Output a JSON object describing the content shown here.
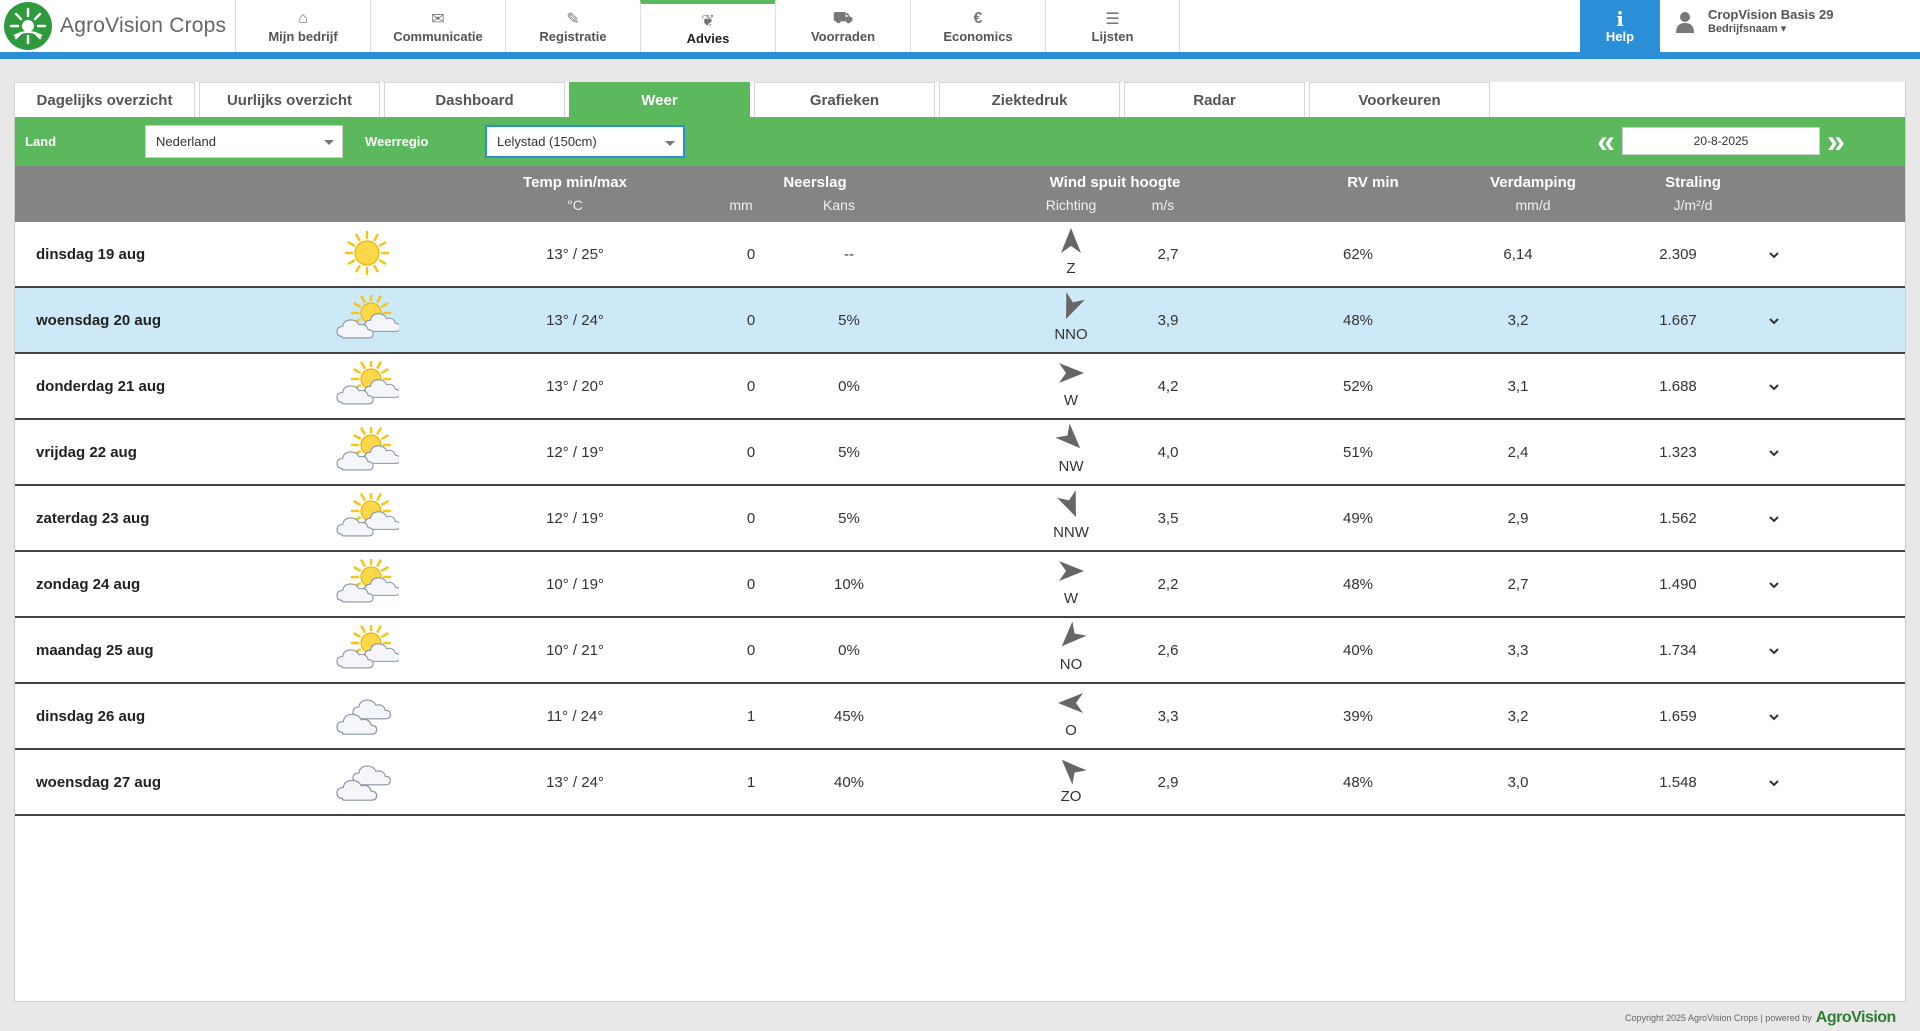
{
  "app": {
    "name": "AgroVision Crops"
  },
  "nav": [
    {
      "label": "Mijn bedrijf",
      "icon": "home-icon",
      "glyph": "⌂"
    },
    {
      "label": "Communicatie",
      "icon": "envelope-icon",
      "glyph": "✉"
    },
    {
      "label": "Registratie",
      "icon": "pencil-icon",
      "glyph": "✎"
    },
    {
      "label": "Advies",
      "icon": "leaf-icon",
      "glyph": "❦"
    },
    {
      "label": "Voorraden",
      "icon": "truck-icon",
      "glyph": "⛟"
    },
    {
      "label": "Economics",
      "icon": "euro-icon",
      "glyph": "€"
    },
    {
      "label": "Lijsten",
      "icon": "list-icon",
      "glyph": "☰"
    }
  ],
  "nav_active": "Advies",
  "help": {
    "label": "Help",
    "glyph": "i"
  },
  "user": {
    "line1": "CropVision Basis 29",
    "line2": "Bedrijfsnaam ▾"
  },
  "tabs": [
    "Dagelijks overzicht",
    "Uurlijks overzicht",
    "Dashboard",
    "Weer",
    "Grafieken",
    "Ziektedruk",
    "Radar",
    "Voorkeuren"
  ],
  "tab_active": "Weer",
  "filters": {
    "land_label": "Land",
    "land_value": "Nederland",
    "region_label": "Weerregio",
    "region_value": "Lelystad (150cm)",
    "date": "20-8-2025",
    "prev": "«",
    "next": "»"
  },
  "header": {
    "temp": "Temp min/max",
    "temp_unit": "°C",
    "neerslag": "Neerslag",
    "mm": "mm",
    "kans": "Kans",
    "wind": "Wind spuit hoogte",
    "richting": "Richting",
    "ms": "m/s",
    "rv": "RV min",
    "verdamping": "Verdamping",
    "verdamping_unit": "mm/d",
    "straling": "Straling",
    "straling_unit": "J/m²/d"
  },
  "rows": [
    {
      "day": "dinsdag 19 aug",
      "weather": "sunny",
      "temp": "13° / 25°",
      "mm": "0",
      "kans": "--",
      "dir": "Z",
      "wind": "2,7",
      "rv": "62%",
      "verd": "6,14",
      "stral": "2.309"
    },
    {
      "day": "woensdag 20 aug",
      "weather": "partly-cloudy",
      "temp": "13° / 24°",
      "mm": "0",
      "kans": "5%",
      "dir": "NNO",
      "wind": "3,9",
      "rv": "48%",
      "verd": "3,2",
      "stral": "1.667"
    },
    {
      "day": "donderdag 21 aug",
      "weather": "partly-cloudy",
      "temp": "13° / 20°",
      "mm": "0",
      "kans": "0%",
      "dir": "W",
      "wind": "4,2",
      "rv": "52%",
      "verd": "3,1",
      "stral": "1.688"
    },
    {
      "day": "vrijdag 22 aug",
      "weather": "partly-cloudy",
      "temp": "12° / 19°",
      "mm": "0",
      "kans": "5%",
      "dir": "NW",
      "wind": "4,0",
      "rv": "51%",
      "verd": "2,4",
      "stral": "1.323"
    },
    {
      "day": "zaterdag 23 aug",
      "weather": "partly-cloudy",
      "temp": "12° / 19°",
      "mm": "0",
      "kans": "5%",
      "dir": "NNW",
      "wind": "3,5",
      "rv": "49%",
      "verd": "2,9",
      "stral": "1.562"
    },
    {
      "day": "zondag 24 aug",
      "weather": "partly-cloudy",
      "temp": "10° / 19°",
      "mm": "0",
      "kans": "10%",
      "dir": "W",
      "wind": "2,2",
      "rv": "48%",
      "verd": "2,7",
      "stral": "1.490"
    },
    {
      "day": "maandag 25 aug",
      "weather": "partly-cloudy",
      "temp": "10° / 21°",
      "mm": "0",
      "kans": "0%",
      "dir": "NO",
      "wind": "2,6",
      "rv": "40%",
      "verd": "3,3",
      "stral": "1.734"
    },
    {
      "day": "dinsdag 26 aug",
      "weather": "cloudy",
      "temp": "11° / 24°",
      "mm": "1",
      "kans": "45%",
      "dir": "O",
      "wind": "3,3",
      "rv": "39%",
      "verd": "3,2",
      "stral": "1.659"
    },
    {
      "day": "woensdag 27 aug",
      "weather": "cloudy",
      "temp": "13° / 24°",
      "mm": "1",
      "kans": "40%",
      "dir": "ZO",
      "wind": "2,9",
      "rv": "48%",
      "verd": "3,0",
      "stral": "1.548"
    }
  ],
  "highlight_row": 1,
  "footer": {
    "copyright": "Copyright 2025 AgroVision Crops | powered by",
    "brand": "AgroVision"
  },
  "colors": {
    "green": "#5cb85c",
    "blue": "#2a8fd6",
    "header_gray": "#848484",
    "highlight": "#cde9f7"
  }
}
